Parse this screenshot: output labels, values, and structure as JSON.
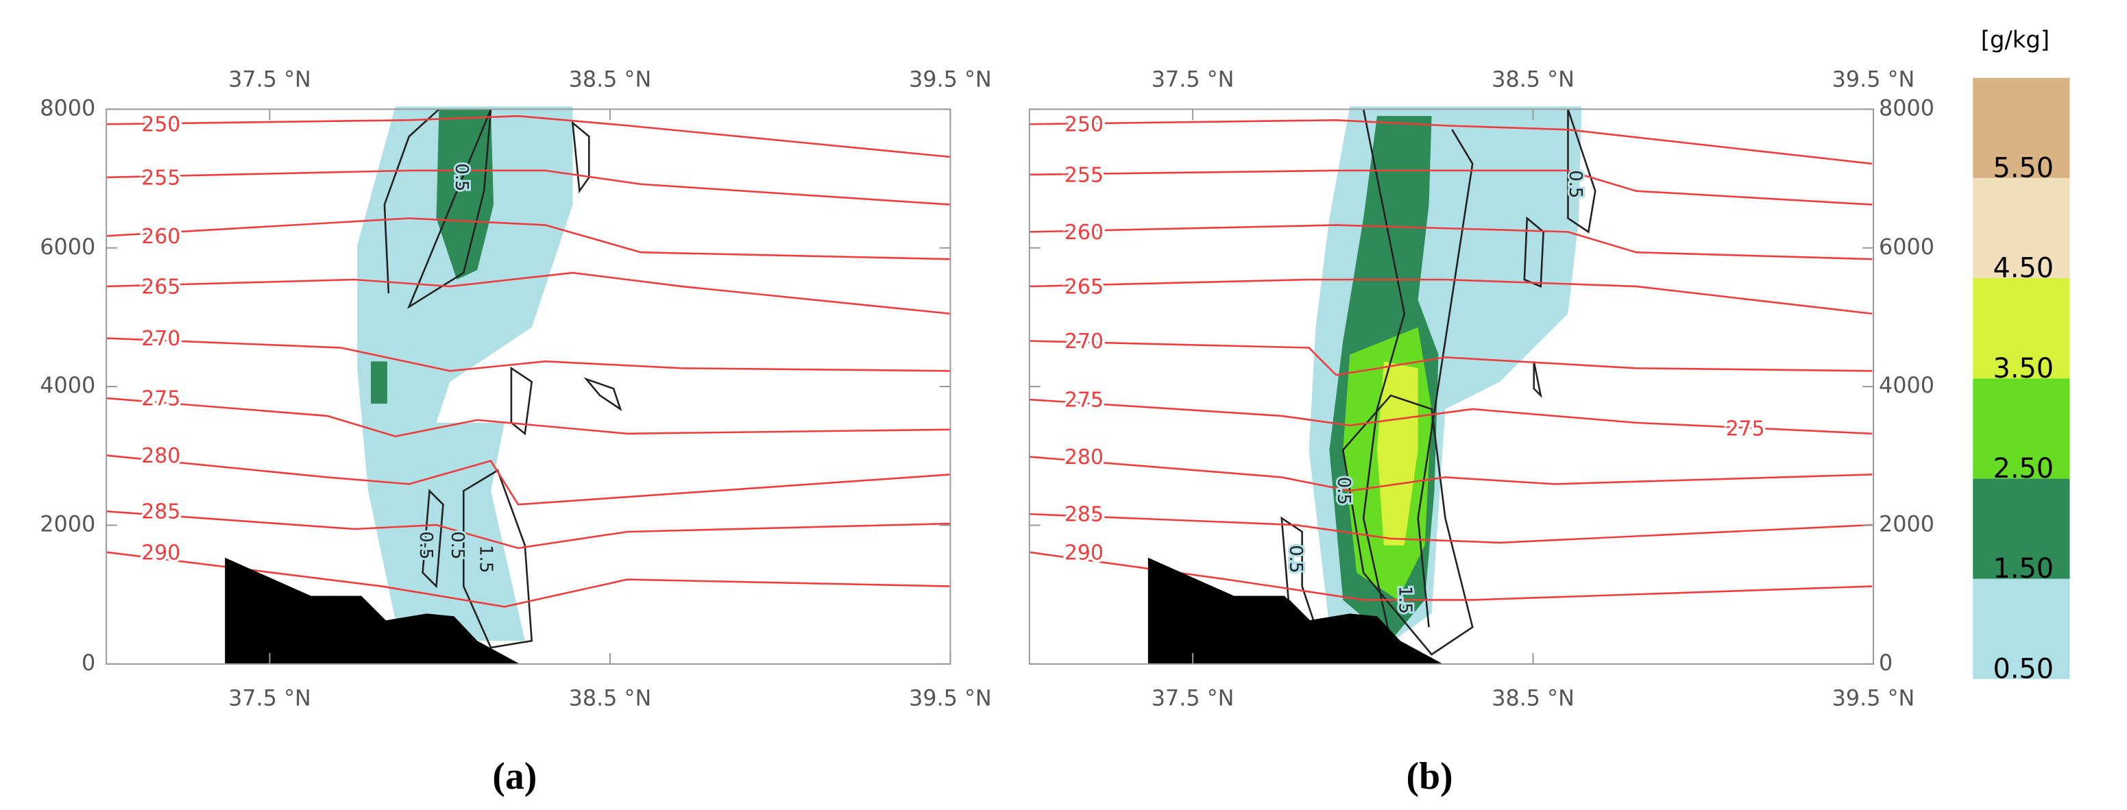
{
  "chart_data": [
    {
      "type": "contour",
      "title": "(a)",
      "xlim": [
        37.02,
        39.5
      ],
      "ylim": [
        0,
        8000
      ],
      "xticks": [
        {
          "value": 37.5,
          "label": "37.5 °N"
        },
        {
          "value": 38.5,
          "label": "38.5 °N"
        },
        {
          "value": 39.5,
          "label": "39.5 °N"
        }
      ],
      "yticks": [
        0,
        2000,
        4000,
        6000,
        8000
      ],
      "y_axis_side": "left",
      "isentrope_color": "#f03c3c",
      "isentrope_levels": [
        250,
        255,
        260,
        265,
        270,
        275,
        280,
        285,
        290
      ],
      "contour_labels": [
        0.5,
        0.5,
        0.5,
        1.5
      ]
    },
    {
      "type": "contour",
      "title": "(b)",
      "xlim": [
        37.02,
        39.5
      ],
      "ylim": [
        0,
        8000
      ],
      "xticks": [
        {
          "value": 37.5,
          "label": "37.5 °N"
        },
        {
          "value": 38.5,
          "label": "38.5 °N"
        },
        {
          "value": 39.5,
          "label": "39.5 °N"
        }
      ],
      "yticks": [
        0,
        2000,
        4000,
        6000,
        8000
      ],
      "y_axis_side": "right",
      "isentrope_color": "#f03c3c",
      "isentrope_levels": [
        250,
        255,
        260,
        265,
        270,
        275,
        280,
        285,
        290
      ],
      "extra_isentrope_labels": [
        275
      ],
      "contour_labels": [
        0.5,
        0.5,
        0.5,
        1.5
      ]
    },
    {
      "type": "colorbar",
      "title": "[g/kg]",
      "levels": [
        {
          "value": 0.5,
          "label": "0.50"
        },
        {
          "value": 1.5,
          "label": "1.50"
        },
        {
          "value": 2.5,
          "label": "2.50"
        },
        {
          "value": 3.5,
          "label": "3.50"
        },
        {
          "value": 4.5,
          "label": "4.50"
        },
        {
          "value": 5.5,
          "label": "5.50"
        }
      ],
      "colors": [
        "#aee0e6",
        "#2e8b57",
        "#66dd22",
        "#d6f23a",
        "#f2e0bc",
        "#d9b383"
      ]
    }
  ]
}
